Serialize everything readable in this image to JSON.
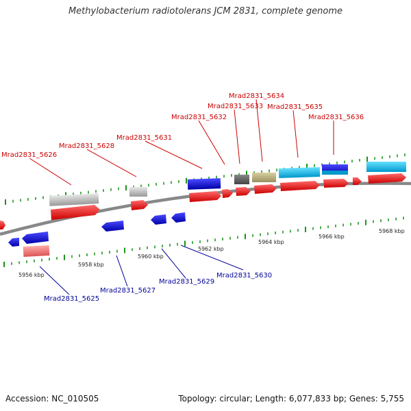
{
  "title": "Methylobacterium radiotolerans JCM 2831, complete genome",
  "accession": "Accession: NC_010505",
  "topology": "Topology: circular; Length: 6,077,833 bp; Genes: 5,755",
  "colors": {
    "forward_label": "#cc0000",
    "reverse_label": "#000099",
    "tick": "#008800",
    "backbone": "#888888"
  },
  "scale_labels": [
    "5956 kbp",
    "5958 kbp",
    "5960 kbp",
    "5962 kbp",
    "5964 kbp",
    "5966 kbp",
    "5968 kbp"
  ],
  "forward_genes": [
    "Mrad2831_5626",
    "Mrad2831_5628",
    "Mrad2831_5631",
    "Mrad2831_5632",
    "Mrad2831_5633",
    "Mrad2831_5634",
    "Mrad2831_5635",
    "Mrad2831_5636"
  ],
  "reverse_genes": [
    "Mrad2831_5625",
    "Mrad2831_5627",
    "Mrad2831_5629",
    "Mrad2831_5630"
  ]
}
